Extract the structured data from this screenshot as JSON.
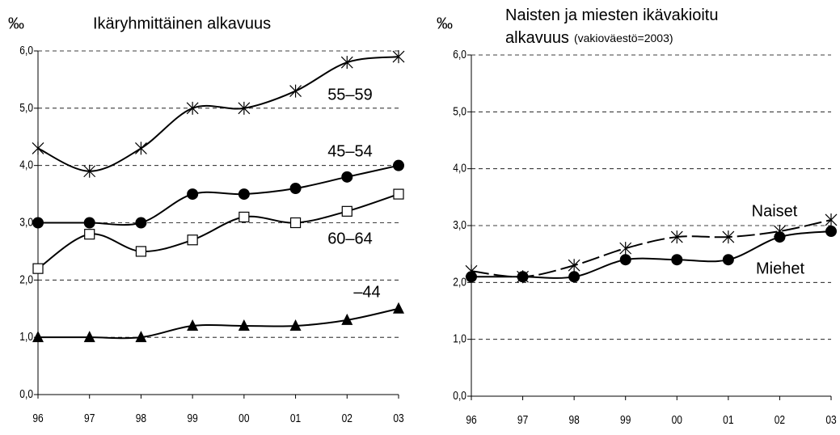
{
  "chart_data": [
    {
      "type": "line",
      "title": "Ikäryhmittäinen alkavuus",
      "ylabel": "‰",
      "categories": [
        "96",
        "97",
        "98",
        "99",
        "00",
        "01",
        "02",
        "03"
      ],
      "ylim": [
        0,
        6
      ],
      "yticks": [
        {
          "value": 0,
          "label": "0,0"
        },
        {
          "value": 1,
          "label": "1,0"
        },
        {
          "value": 2,
          "label": "2,0"
        },
        {
          "value": 3,
          "label": "3,0"
        },
        {
          "value": 4,
          "label": "4,0"
        },
        {
          "value": 5,
          "label": "5,0"
        },
        {
          "value": 6,
          "label": "6,0"
        }
      ],
      "grid": true,
      "series": [
        {
          "name": "55–59",
          "color": "#000000",
          "marker": "star",
          "values": [
            4.3,
            3.9,
            4.3,
            5.0,
            5.0,
            5.3,
            5.8,
            5.9
          ]
        },
        {
          "name": "45–54",
          "color": "#000000",
          "marker": "circle",
          "values": [
            3.0,
            3.0,
            3.0,
            3.5,
            3.5,
            3.6,
            3.8,
            4.0
          ]
        },
        {
          "name": "60–64",
          "color": "#000000",
          "marker": "square",
          "values": [
            2.2,
            2.8,
            2.5,
            2.7,
            3.1,
            3.0,
            3.2,
            3.5
          ]
        },
        {
          "name": "–44",
          "color": "#000000",
          "marker": "triangle",
          "values": [
            1.0,
            1.0,
            1.0,
            1.2,
            1.2,
            1.2,
            1.3,
            1.5
          ]
        }
      ]
    },
    {
      "type": "line",
      "title": "Naisten ja miesten ikävakioitu alkavuus",
      "subtitle": "(vakioväestö=2003)",
      "ylabel": "‰",
      "categories": [
        "96",
        "97",
        "98",
        "99",
        "00",
        "01",
        "02",
        "03"
      ],
      "ylim": [
        0,
        6
      ],
      "yticks": [
        {
          "value": 0,
          "label": "0,0"
        },
        {
          "value": 1,
          "label": "1,0"
        },
        {
          "value": 2,
          "label": "2,0"
        },
        {
          "value": 3,
          "label": "3,0"
        },
        {
          "value": 4,
          "label": "4,0"
        },
        {
          "value": 5,
          "label": "5,0"
        },
        {
          "value": 6,
          "label": "6,0"
        }
      ],
      "grid": true,
      "series": [
        {
          "name": "Naiset",
          "color": "#000000",
          "marker": "star",
          "dashed": true,
          "values": [
            2.2,
            2.1,
            2.3,
            2.6,
            2.8,
            2.8,
            2.9,
            3.1
          ]
        },
        {
          "name": "Miehet",
          "color": "#000000",
          "marker": "circle",
          "values": [
            2.1,
            2.1,
            2.1,
            2.4,
            2.4,
            2.4,
            2.8,
            2.9
          ]
        }
      ]
    }
  ]
}
